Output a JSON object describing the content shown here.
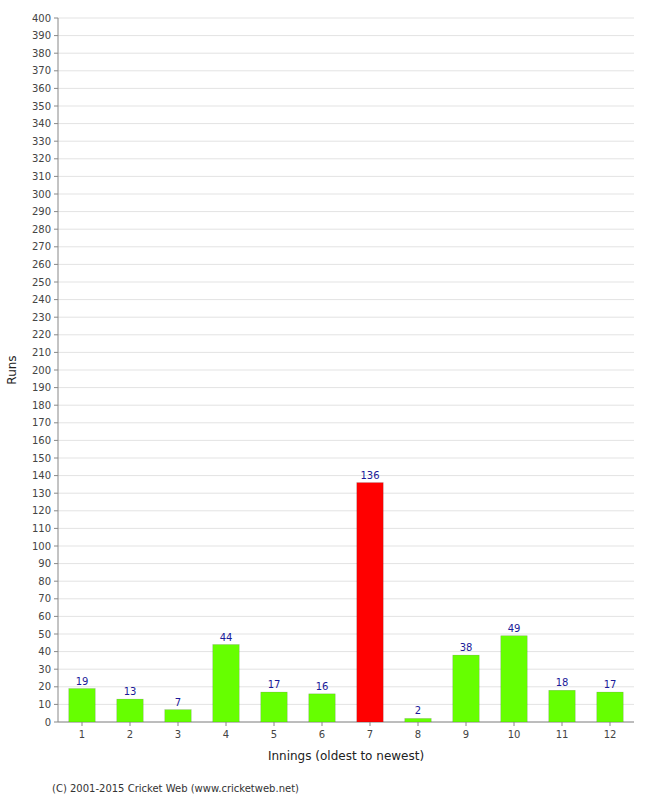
{
  "chart_data": {
    "type": "bar",
    "categories": [
      "1",
      "2",
      "3",
      "4",
      "5",
      "6",
      "7",
      "8",
      "9",
      "10",
      "11",
      "12"
    ],
    "values": [
      19,
      13,
      7,
      44,
      17,
      16,
      136,
      2,
      38,
      49,
      18,
      17
    ],
    "colors": [
      "#66ff00",
      "#66ff00",
      "#66ff00",
      "#66ff00",
      "#66ff00",
      "#66ff00",
      "#ff0000",
      "#66ff00",
      "#66ff00",
      "#66ff00",
      "#66ff00",
      "#66ff00"
    ],
    "x_label": "Innings (oldest to newest)",
    "y_label": "Runs",
    "ylim": [
      0,
      400
    ],
    "yticks": [
      0,
      10,
      20,
      30,
      40,
      50,
      60,
      70,
      80,
      90,
      100,
      110,
      120,
      130,
      140,
      150,
      160,
      170,
      180,
      190,
      200,
      210,
      220,
      230,
      240,
      250,
      260,
      270,
      280,
      290,
      300,
      310,
      320,
      330,
      340,
      350,
      360,
      370,
      380,
      390,
      400
    ],
    "grid": true,
    "data_labels": true,
    "annotations": [
      "(C) 2001-2015 Cricket Web (www.cricketweb.net)"
    ]
  }
}
